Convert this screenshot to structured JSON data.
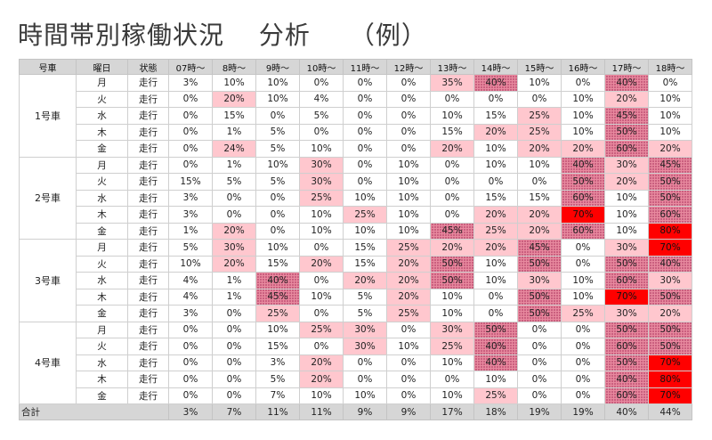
{
  "title": "時間帯別稼働状況　 分析　　（例）",
  "headers": [
    "号車",
    "曜日",
    "状態",
    "07時～",
    "8時～",
    "9時～",
    "10時～",
    "11時～",
    "12時～",
    "13時～",
    "14時～",
    "15時～",
    "16時～",
    "17時～",
    "18時～"
  ],
  "groups": [
    {
      "car": "1号車",
      "rows": [
        {
          "day": "月",
          "status": "走行",
          "values": [
            "3%",
            "10%",
            "10%",
            "0%",
            "0%",
            "0%",
            "35%",
            "40%",
            "10%",
            "0%",
            "40%",
            "0%"
          ],
          "levels": [
            0,
            0,
            0,
            0,
            0,
            0,
            1,
            2,
            0,
            0,
            2,
            0
          ]
        },
        {
          "day": "火",
          "status": "走行",
          "values": [
            "0%",
            "20%",
            "10%",
            "4%",
            "0%",
            "0%",
            "0%",
            "0%",
            "0%",
            "10%",
            "20%",
            "10%"
          ],
          "levels": [
            0,
            1,
            0,
            0,
            0,
            0,
            0,
            0,
            0,
            0,
            1,
            0
          ]
        },
        {
          "day": "水",
          "status": "走行",
          "values": [
            "0%",
            "15%",
            "0%",
            "5%",
            "0%",
            "0%",
            "10%",
            "15%",
            "25%",
            "10%",
            "45%",
            "10%"
          ],
          "levels": [
            0,
            0,
            0,
            0,
            0,
            0,
            0,
            0,
            1,
            0,
            2,
            0
          ]
        },
        {
          "day": "木",
          "status": "走行",
          "values": [
            "0%",
            "1%",
            "5%",
            "0%",
            "0%",
            "0%",
            "15%",
            "20%",
            "25%",
            "10%",
            "50%",
            "10%"
          ],
          "levels": [
            0,
            0,
            0,
            0,
            0,
            0,
            0,
            1,
            1,
            0,
            2,
            0
          ]
        },
        {
          "day": "金",
          "status": "走行",
          "values": [
            "0%",
            "24%",
            "5%",
            "10%",
            "0%",
            "0%",
            "20%",
            "10%",
            "20%",
            "20%",
            "60%",
            "20%"
          ],
          "levels": [
            0,
            1,
            0,
            0,
            0,
            0,
            1,
            0,
            1,
            1,
            2,
            1
          ]
        }
      ]
    },
    {
      "car": "2号車",
      "rows": [
        {
          "day": "月",
          "status": "走行",
          "values": [
            "0%",
            "1%",
            "10%",
            "30%",
            "0%",
            "10%",
            "0%",
            "10%",
            "10%",
            "40%",
            "30%",
            "45%"
          ],
          "levels": [
            0,
            0,
            0,
            1,
            0,
            0,
            0,
            0,
            0,
            2,
            1,
            2
          ]
        },
        {
          "day": "火",
          "status": "走行",
          "values": [
            "15%",
            "5%",
            "5%",
            "30%",
            "0%",
            "10%",
            "0%",
            "0%",
            "0%",
            "50%",
            "20%",
            "50%"
          ],
          "levels": [
            0,
            0,
            0,
            1,
            0,
            0,
            0,
            0,
            0,
            2,
            1,
            2
          ]
        },
        {
          "day": "水",
          "status": "走行",
          "values": [
            "3%",
            "0%",
            "0%",
            "25%",
            "10%",
            "10%",
            "0%",
            "15%",
            "15%",
            "60%",
            "10%",
            "50%"
          ],
          "levels": [
            0,
            0,
            0,
            1,
            0,
            0,
            0,
            0,
            0,
            2,
            0,
            2
          ]
        },
        {
          "day": "木",
          "status": "走行",
          "values": [
            "3%",
            "0%",
            "0%",
            "10%",
            "25%",
            "10%",
            "0%",
            "20%",
            "20%",
            "70%",
            "10%",
            "60%"
          ],
          "levels": [
            0,
            0,
            0,
            0,
            1,
            0,
            0,
            1,
            1,
            3,
            0,
            2
          ]
        },
        {
          "day": "金",
          "status": "走行",
          "values": [
            "1%",
            "20%",
            "0%",
            "10%",
            "10%",
            "10%",
            "45%",
            "25%",
            "20%",
            "60%",
            "10%",
            "80%"
          ],
          "levels": [
            0,
            1,
            0,
            0,
            0,
            0,
            2,
            1,
            1,
            2,
            0,
            3
          ]
        }
      ]
    },
    {
      "car": "3号車",
      "rows": [
        {
          "day": "月",
          "status": "走行",
          "values": [
            "5%",
            "30%",
            "10%",
            "0%",
            "15%",
            "25%",
            "20%",
            "20%",
            "45%",
            "0%",
            "30%",
            "70%"
          ],
          "levels": [
            0,
            1,
            0,
            0,
            0,
            1,
            1,
            1,
            2,
            0,
            1,
            3
          ]
        },
        {
          "day": "火",
          "status": "走行",
          "values": [
            "10%",
            "20%",
            "15%",
            "20%",
            "15%",
            "20%",
            "50%",
            "10%",
            "50%",
            "0%",
            "50%",
            "40%"
          ],
          "levels": [
            0,
            1,
            0,
            1,
            0,
            1,
            2,
            0,
            2,
            0,
            2,
            2
          ]
        },
        {
          "day": "水",
          "status": "走行",
          "values": [
            "4%",
            "1%",
            "40%",
            "0%",
            "20%",
            "20%",
            "50%",
            "10%",
            "30%",
            "10%",
            "60%",
            "30%"
          ],
          "levels": [
            0,
            0,
            2,
            0,
            1,
            1,
            2,
            0,
            1,
            0,
            2,
            1
          ]
        },
        {
          "day": "木",
          "status": "走行",
          "values": [
            "4%",
            "1%",
            "45%",
            "10%",
            "5%",
            "20%",
            "10%",
            "0%",
            "50%",
            "10%",
            "70%",
            "50%"
          ],
          "levels": [
            0,
            0,
            2,
            0,
            0,
            1,
            0,
            0,
            2,
            0,
            3,
            2
          ]
        },
        {
          "day": "金",
          "status": "走行",
          "values": [
            "3%",
            "0%",
            "25%",
            "0%",
            "5%",
            "25%",
            "10%",
            "0%",
            "50%",
            "25%",
            "30%",
            "20%"
          ],
          "levels": [
            0,
            0,
            1,
            0,
            0,
            1,
            0,
            0,
            2,
            1,
            1,
            1
          ]
        }
      ]
    },
    {
      "car": "4号車",
      "rows": [
        {
          "day": "月",
          "status": "走行",
          "values": [
            "0%",
            "0%",
            "10%",
            "25%",
            "30%",
            "0%",
            "30%",
            "50%",
            "0%",
            "0%",
            "50%",
            "50%"
          ],
          "levels": [
            0,
            0,
            0,
            1,
            1,
            0,
            1,
            2,
            0,
            0,
            2,
            2
          ]
        },
        {
          "day": "火",
          "status": "走行",
          "values": [
            "0%",
            "0%",
            "15%",
            "0%",
            "30%",
            "10%",
            "25%",
            "40%",
            "0%",
            "0%",
            "60%",
            "50%"
          ],
          "levels": [
            0,
            0,
            0,
            0,
            1,
            0,
            1,
            2,
            0,
            0,
            2,
            2
          ]
        },
        {
          "day": "水",
          "status": "走行",
          "values": [
            "0%",
            "0%",
            "3%",
            "20%",
            "0%",
            "0%",
            "10%",
            "40%",
            "0%",
            "0%",
            "50%",
            "70%"
          ],
          "levels": [
            0,
            0,
            0,
            1,
            0,
            0,
            0,
            2,
            0,
            0,
            2,
            3
          ]
        },
        {
          "day": "木",
          "status": "走行",
          "values": [
            "0%",
            "0%",
            "5%",
            "20%",
            "0%",
            "0%",
            "0%",
            "10%",
            "0%",
            "0%",
            "40%",
            "80%"
          ],
          "levels": [
            0,
            0,
            0,
            1,
            0,
            0,
            0,
            0,
            0,
            0,
            2,
            3
          ]
        },
        {
          "day": "金",
          "status": "走行",
          "values": [
            "0%",
            "0%",
            "7%",
            "10%",
            "10%",
            "0%",
            "10%",
            "25%",
            "0%",
            "0%",
            "60%",
            "70%"
          ],
          "levels": [
            0,
            0,
            0,
            0,
            0,
            0,
            0,
            1,
            0,
            0,
            2,
            3
          ]
        }
      ]
    }
  ],
  "total": {
    "label": "合計",
    "values": [
      "3%",
      "7%",
      "11%",
      "11%",
      "9%",
      "9%",
      "17%",
      "18%",
      "19%",
      "19%",
      "40%",
      "44%"
    ]
  },
  "colors": {
    "header_bg": "#d6d6d6",
    "light": "#ffc7ce",
    "medium": "#e88a9f",
    "high": "#ff0000"
  }
}
